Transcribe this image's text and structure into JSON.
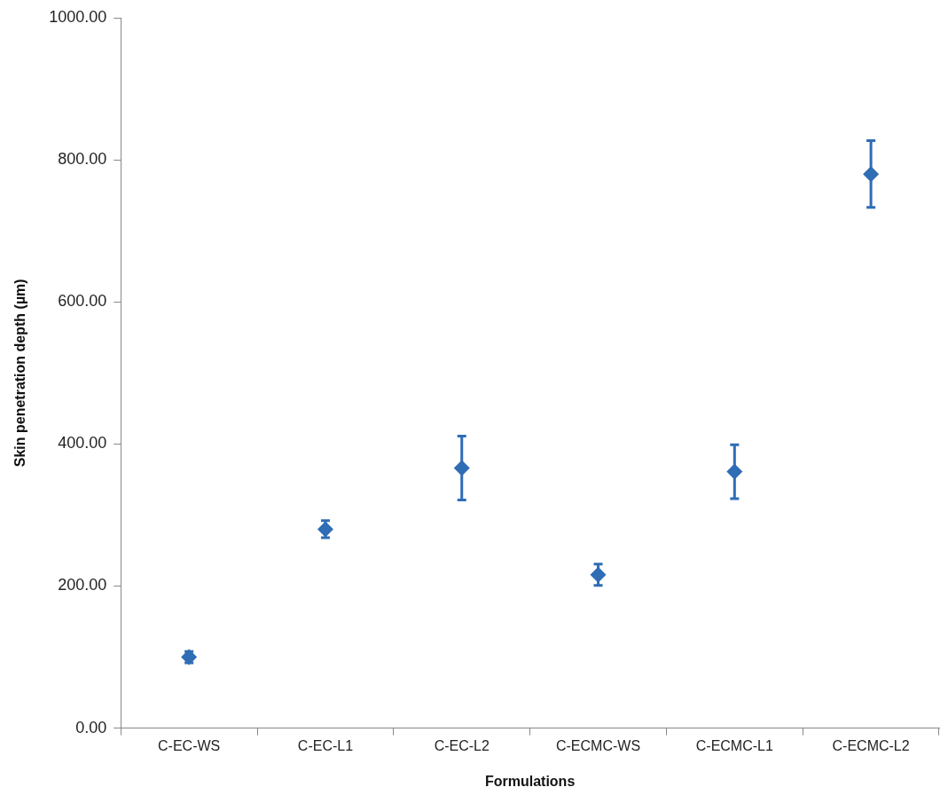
{
  "chart_data": {
    "type": "scatter",
    "xlabel": "Formulations",
    "ylabel": "Skin penetration depth (µm)",
    "categories": [
      "C-EC-WS",
      "C-EC-L1",
      "C-EC-L2",
      "C-ECMC-WS",
      "C-ECMC-L1",
      "C-ECMC-L2"
    ],
    "series": [
      {
        "color": "#2f6db5",
        "values": [
          100,
          280,
          366,
          216,
          361,
          780
        ],
        "errors": [
          8,
          12,
          45,
          15,
          38,
          47
        ]
      }
    ],
    "ylim": [
      0,
      1000
    ],
    "yticks": [
      {
        "value": 0,
        "label": "0.00"
      },
      {
        "value": 200,
        "label": "200.00"
      },
      {
        "value": 400,
        "label": "400.00"
      },
      {
        "value": 600,
        "label": "600.00"
      },
      {
        "value": 800,
        "label": "800.00"
      },
      {
        "value": 1000,
        "label": "1000.00"
      }
    ],
    "marker": "diamond",
    "grid": false,
    "legend": false
  }
}
